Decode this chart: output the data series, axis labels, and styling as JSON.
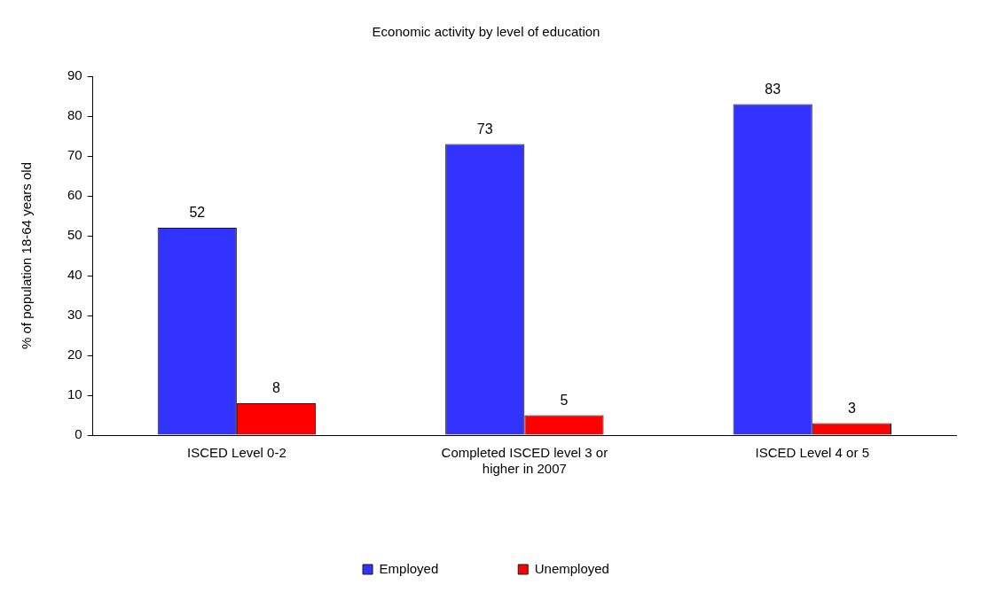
{
  "chart_data": {
    "type": "bar",
    "title": "Economic activity by level of education",
    "ylabel": "% of population 18-64 years old",
    "categories": [
      "ISCED Level 0-2",
      "Completed ISCED level 3 or higher in 2007",
      "ISCED Level 4 or 5"
    ],
    "series": [
      {
        "name": "Employed",
        "color": "#3333ff",
        "values": [
          52,
          73,
          83
        ]
      },
      {
        "name": "Unemployed",
        "color": "#ff0000",
        "values": [
          8,
          5,
          3
        ]
      }
    ],
    "ylim": [
      0,
      90
    ],
    "yticks": [
      0,
      10,
      20,
      30,
      40,
      50,
      60,
      70,
      80,
      90
    ],
    "grid": false,
    "legend": "bottom",
    "data_labels": true
  }
}
